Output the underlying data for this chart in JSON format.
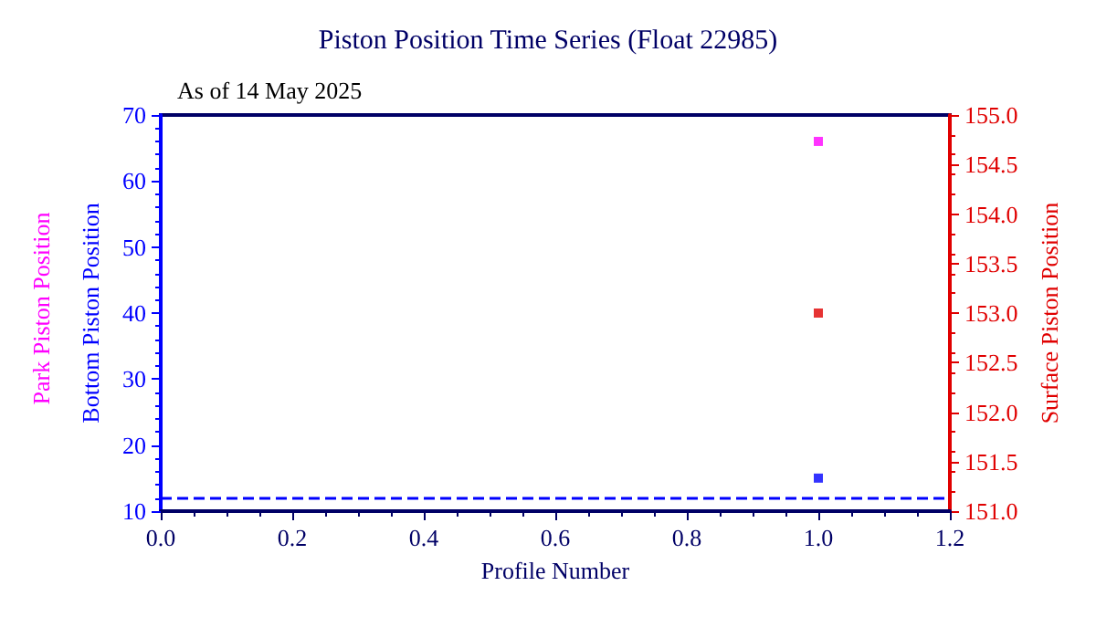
{
  "chart_data": {
    "type": "scatter",
    "title": "Piston Position Time Series (Float 22985)",
    "subtitle": "As of 14 May 2025",
    "xlabel": "Profile Number",
    "ylabel": "Bottom Piston Position",
    "y2label": "Surface Piston Position",
    "annotations": [
      "Park Piston Position"
    ],
    "x": [
      1
    ],
    "series": [
      {
        "color": "#0000ff",
        "values": [
          15
        ]
      },
      {
        "color": "#ff00ff",
        "values": [
          66
        ]
      },
      {
        "color": "#e00000",
        "values": [
          153.0
        ],
        "axis": "y2"
      }
    ],
    "xlim": [
      0,
      1.2
    ],
    "xticks": [
      {
        "value": 0,
        "label": "0.0"
      },
      {
        "value": 0.2,
        "label": "0.2"
      },
      {
        "value": 0.4,
        "label": "0.4"
      },
      {
        "value": 0.6,
        "label": "0.6"
      },
      {
        "value": 0.8,
        "label": "0.8"
      },
      {
        "value": 1,
        "label": "1.0"
      },
      {
        "value": 1.2,
        "label": "1.2"
      }
    ],
    "ylim": [
      10,
      70
    ],
    "yticks": [
      10,
      20,
      30,
      40,
      50,
      60,
      70
    ],
    "y2lim": [
      151,
      155
    ],
    "y2ticks": [
      {
        "value": 151,
        "label": "151.0"
      },
      151.5,
      {
        "value": 152,
        "label": "152.0"
      },
      152.5,
      {
        "value": 153,
        "label": "153.0"
      },
      153.5,
      {
        "value": 154,
        "label": "154.0"
      },
      154.5,
      {
        "value": 155,
        "label": "155.0"
      }
    ],
    "ref_lines": [
      {
        "axis": "y",
        "value": 12,
        "color": "#0000ff",
        "line_style": "dashed"
      }
    ],
    "marker": "square",
    "grid": false
  }
}
